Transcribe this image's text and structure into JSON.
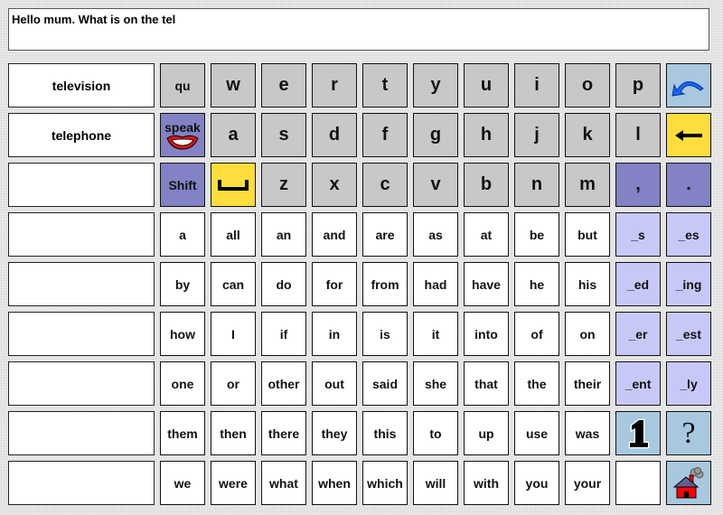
{
  "text_display": "Hello mum.  What is on the tel",
  "predictions": [
    "television",
    "telephone",
    "",
    "",
    "",
    "",
    "",
    "",
    ""
  ],
  "colors": {
    "letter": "#c8c8c8",
    "command": "#8282c4",
    "action": "#ffdd3c",
    "suffix": "#c8c8f8",
    "nav": "#a8c8e0",
    "word": "#ffffff"
  },
  "rows": [
    [
      {
        "t": "letter small",
        "l": "qu"
      },
      {
        "t": "letter",
        "l": "w"
      },
      {
        "t": "letter",
        "l": "e"
      },
      {
        "t": "letter",
        "l": "r"
      },
      {
        "t": "letter",
        "l": "t"
      },
      {
        "t": "letter",
        "l": "y"
      },
      {
        "t": "letter",
        "l": "u"
      },
      {
        "t": "letter",
        "l": "i"
      },
      {
        "t": "letter",
        "l": "o"
      },
      {
        "t": "letter",
        "l": "p"
      },
      {
        "t": "blue",
        "l": "",
        "icon": "undo-icon"
      }
    ],
    [
      {
        "t": "purple",
        "l": "speak",
        "icon": "lips-icon"
      },
      {
        "t": "letter",
        "l": "a"
      },
      {
        "t": "letter",
        "l": "s"
      },
      {
        "t": "letter",
        "l": "d"
      },
      {
        "t": "letter",
        "l": "f"
      },
      {
        "t": "letter",
        "l": "g"
      },
      {
        "t": "letter",
        "l": "h"
      },
      {
        "t": "letter",
        "l": "j"
      },
      {
        "t": "letter",
        "l": "k"
      },
      {
        "t": "letter",
        "l": "l"
      },
      {
        "t": "yellow",
        "l": "",
        "icon": "backspace-arrow-icon"
      }
    ],
    [
      {
        "t": "purple",
        "l": "Shift"
      },
      {
        "t": "yellow",
        "l": "",
        "icon": "space-icon"
      },
      {
        "t": "letter",
        "l": "z"
      },
      {
        "t": "letter",
        "l": "x"
      },
      {
        "t": "letter",
        "l": "c"
      },
      {
        "t": "letter",
        "l": "v"
      },
      {
        "t": "letter",
        "l": "b"
      },
      {
        "t": "letter",
        "l": "n"
      },
      {
        "t": "letter",
        "l": "m"
      },
      {
        "t": "purple big",
        "l": ","
      },
      {
        "t": "purple big",
        "l": "."
      }
    ],
    [
      {
        "t": "word",
        "l": "a"
      },
      {
        "t": "word",
        "l": "all"
      },
      {
        "t": "word",
        "l": "an"
      },
      {
        "t": "word",
        "l": "and"
      },
      {
        "t": "word",
        "l": "are"
      },
      {
        "t": "word",
        "l": "as"
      },
      {
        "t": "word",
        "l": "at"
      },
      {
        "t": "word",
        "l": "be"
      },
      {
        "t": "word",
        "l": "but"
      },
      {
        "t": "lav",
        "l": "_s"
      },
      {
        "t": "lav",
        "l": "_es"
      }
    ],
    [
      {
        "t": "word",
        "l": "by"
      },
      {
        "t": "word",
        "l": "can"
      },
      {
        "t": "word",
        "l": "do"
      },
      {
        "t": "word",
        "l": "for"
      },
      {
        "t": "word",
        "l": "from"
      },
      {
        "t": "word",
        "l": "had"
      },
      {
        "t": "word",
        "l": "have"
      },
      {
        "t": "word",
        "l": "he"
      },
      {
        "t": "word",
        "l": "his"
      },
      {
        "t": "lav",
        "l": "_ed"
      },
      {
        "t": "lav",
        "l": "_ing"
      }
    ],
    [
      {
        "t": "word",
        "l": "how"
      },
      {
        "t": "word",
        "l": "I"
      },
      {
        "t": "word",
        "l": "if"
      },
      {
        "t": "word",
        "l": "in"
      },
      {
        "t": "word",
        "l": "is"
      },
      {
        "t": "word",
        "l": "it"
      },
      {
        "t": "word",
        "l": "into"
      },
      {
        "t": "word",
        "l": "of"
      },
      {
        "t": "word",
        "l": "on"
      },
      {
        "t": "lav",
        "l": "_er"
      },
      {
        "t": "lav",
        "l": "_est"
      }
    ],
    [
      {
        "t": "word",
        "l": "one"
      },
      {
        "t": "word",
        "l": "or"
      },
      {
        "t": "word",
        "l": "other"
      },
      {
        "t": "word",
        "l": "out"
      },
      {
        "t": "word",
        "l": "said"
      },
      {
        "t": "word",
        "l": "she"
      },
      {
        "t": "word",
        "l": "that"
      },
      {
        "t": "word",
        "l": "the"
      },
      {
        "t": "word",
        "l": "their"
      },
      {
        "t": "lav",
        "l": "_ent"
      },
      {
        "t": "lav",
        "l": "_ly"
      }
    ],
    [
      {
        "t": "word",
        "l": "them"
      },
      {
        "t": "word",
        "l": "then"
      },
      {
        "t": "word",
        "l": "there"
      },
      {
        "t": "word",
        "l": "they"
      },
      {
        "t": "word",
        "l": "this"
      },
      {
        "t": "word",
        "l": "to"
      },
      {
        "t": "word",
        "l": "up"
      },
      {
        "t": "word",
        "l": "use"
      },
      {
        "t": "word",
        "l": "was"
      },
      {
        "t": "blue",
        "l": "",
        "icon": "number-one-icon"
      },
      {
        "t": "blue",
        "l": "",
        "icon": "question-mark-icon"
      }
    ],
    [
      {
        "t": "word",
        "l": "we"
      },
      {
        "t": "word",
        "l": "were"
      },
      {
        "t": "word",
        "l": "what"
      },
      {
        "t": "word",
        "l": "when"
      },
      {
        "t": "word",
        "l": "which"
      },
      {
        "t": "word",
        "l": "will"
      },
      {
        "t": "word",
        "l": "with"
      },
      {
        "t": "word",
        "l": "you"
      },
      {
        "t": "word",
        "l": "your"
      },
      {
        "t": "blank",
        "l": ""
      },
      {
        "t": "blue",
        "l": "",
        "icon": "home-icon"
      }
    ]
  ]
}
